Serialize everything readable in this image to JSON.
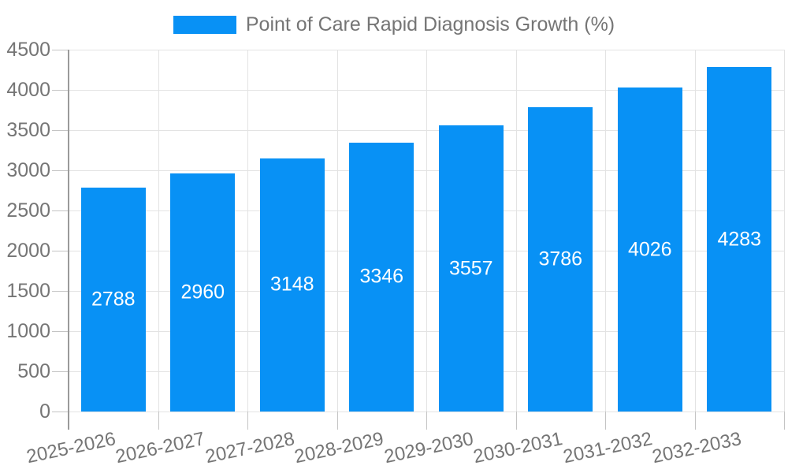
{
  "chart_data": {
    "type": "bar",
    "legend_label": "Point of Care Rapid Diagnosis Growth (%)",
    "categories": [
      "2025-2026",
      "2026-2027",
      "2027-2028",
      "2028-2029",
      "2029-2030",
      "2030-2031",
      "2031-2032",
      "2032-2033"
    ],
    "values": [
      2788,
      2960,
      3148,
      3346,
      3557,
      3786,
      4026,
      4283
    ],
    "ylim": [
      0,
      4500
    ],
    "ytick_step": 500,
    "ytick_labels": [
      "0",
      "500",
      "1000",
      "1500",
      "2000",
      "2500",
      "3000",
      "3500",
      "4000",
      "4500"
    ],
    "grid": true,
    "legend_position": "top-center",
    "x_label_rotation_deg": -12,
    "value_labels_inside_bars": true,
    "colors": {
      "bar": "#0891f5",
      "value_label": "#ffffff",
      "axis_text": "#757575",
      "gridline": "#e3e3e3",
      "tick": "#c4c4c4",
      "axis_line": "#9a9a9a",
      "background": "#ffffff"
    }
  }
}
